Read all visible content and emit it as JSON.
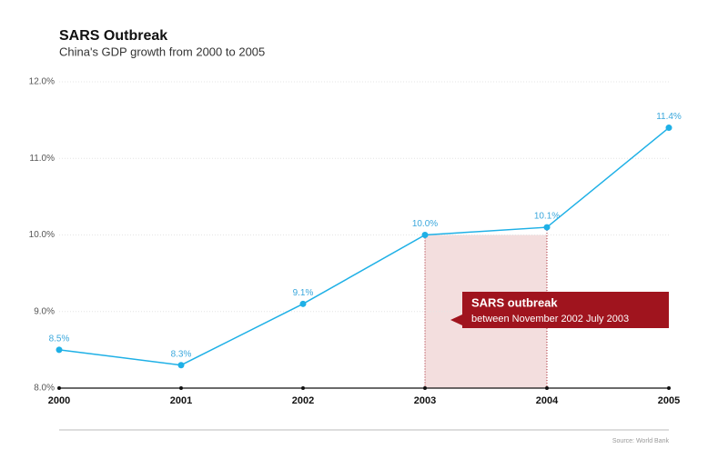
{
  "chart_data": {
    "type": "line",
    "title": "SARS Outbreak",
    "subtitle": "China's GDP growth from 2000 to 2005",
    "x": [
      2000,
      2001,
      2002,
      2003,
      2004,
      2005
    ],
    "xlim": [
      2000,
      2005
    ],
    "xticks": [
      2000,
      2001,
      2002,
      2003,
      2004,
      2005
    ],
    "series": [
      {
        "name": "GDP growth",
        "color": "#1eb0e6",
        "values": [
          8.5,
          8.3,
          9.1,
          10.0,
          10.1,
          11.4
        ],
        "value_labels": [
          "8.5%",
          "8.3%",
          "9.1%",
          "10.0%",
          "10.1%",
          "11.4%"
        ]
      }
    ],
    "ylim": [
      8.0,
      12.0
    ],
    "yticks": [
      {
        "value": 8,
        "label": "8.0%"
      },
      {
        "value": 9,
        "label": "9.0%"
      },
      {
        "value": 10,
        "label": "10.0%"
      },
      {
        "value": 11,
        "label": "11.0%"
      },
      {
        "value": 12,
        "label": "12.0%"
      }
    ],
    "grid": true,
    "highlight": [
      2003,
      2004
    ],
    "annotation": {
      "title": "SARS outbreak",
      "text": "between November 2002 July 2003"
    },
    "source": "Source: World Bank"
  }
}
